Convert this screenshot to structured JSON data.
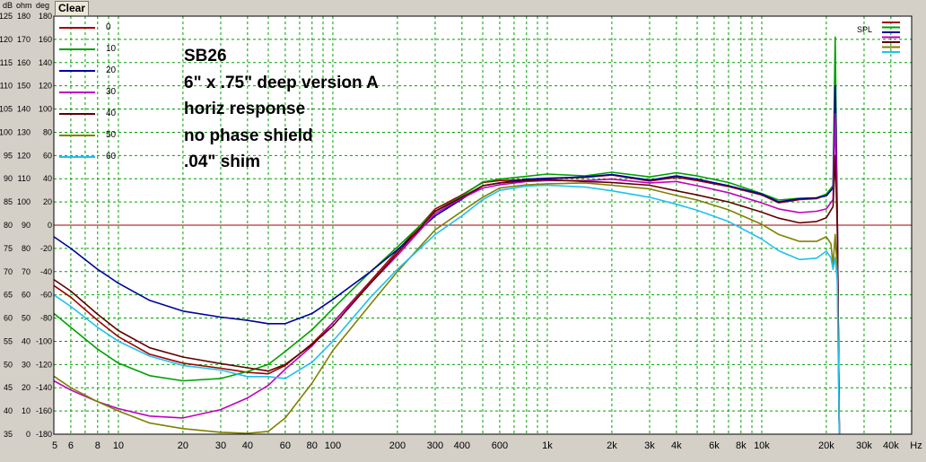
{
  "toolbar": {
    "clear_label": "Clear"
  },
  "axis_units": {
    "db": "dB",
    "ohm": "ohm",
    "deg": "deg"
  },
  "annotation": {
    "lines": [
      "SB26",
      "6\" x .75\" deep version A",
      "horiz response",
      "no phase shield",
      ".04\" shim"
    ]
  },
  "legend_right": {
    "label": "SPL"
  },
  "colors": {
    "background": "#ffffff",
    "grid": "#00a000",
    "reference_line": "#a00000",
    "series": [
      "#a00000",
      "#00a000",
      "#0000a0",
      "#c000c0",
      "#600000",
      "#808000",
      "#20c0f0"
    ]
  },
  "chart_data": {
    "type": "line",
    "xscale": "log",
    "xlim": [
      5,
      50000
    ],
    "ylim": [
      35,
      125
    ],
    "reference_line_db": 80,
    "x_tick_labels": [
      {
        "x": 5,
        "label": "5"
      },
      {
        "x": 6,
        "label": "6"
      },
      {
        "x": 8,
        "label": "8"
      },
      {
        "x": 10,
        "label": "10"
      },
      {
        "x": 20,
        "label": "20"
      },
      {
        "x": 30,
        "label": "30"
      },
      {
        "x": 40,
        "label": "40"
      },
      {
        "x": 60,
        "label": "60"
      },
      {
        "x": 80,
        "label": "80"
      },
      {
        "x": 100,
        "label": "100"
      },
      {
        "x": 200,
        "label": "200"
      },
      {
        "x": 300,
        "label": "300"
      },
      {
        "x": 400,
        "label": "400"
      },
      {
        "x": 600,
        "label": "600"
      },
      {
        "x": 1000,
        "label": "1k"
      },
      {
        "x": 2000,
        "label": "2k"
      },
      {
        "x": 3000,
        "label": "3k"
      },
      {
        "x": 4000,
        "label": "4k"
      },
      {
        "x": 6000,
        "label": "6k"
      },
      {
        "x": 8000,
        "label": "8k"
      },
      {
        "x": 10000,
        "label": "10k"
      },
      {
        "x": 20000,
        "label": "20k"
      },
      {
        "x": 30000,
        "label": "30k"
      },
      {
        "x": 40000,
        "label": "40k"
      },
      {
        "x": 50000,
        "label": "Hz"
      }
    ],
    "y_tick_labels": [
      {
        "db": "125",
        "ohm": "180",
        "deg": "180"
      },
      {
        "db": "120",
        "ohm": "170",
        "deg": "160"
      },
      {
        "db": "115",
        "ohm": "160",
        "deg": "140"
      },
      {
        "db": "110",
        "ohm": "150",
        "deg": "120"
      },
      {
        "db": "105",
        "ohm": "140",
        "deg": "100"
      },
      {
        "db": "100",
        "ohm": "130",
        "deg": "80"
      },
      {
        "db": "95",
        "ohm": "120",
        "deg": "60"
      },
      {
        "db": "90",
        "ohm": "110",
        "deg": "40"
      },
      {
        "db": "85",
        "ohm": "100",
        "deg": "20"
      },
      {
        "db": "80",
        "ohm": "90",
        "deg": "0"
      },
      {
        "db": "75",
        "ohm": "80",
        "deg": "-20"
      },
      {
        "db": "70",
        "ohm": "70",
        "deg": "-40"
      },
      {
        "db": "65",
        "ohm": "60",
        "deg": "-60"
      },
      {
        "db": "60",
        "ohm": "50",
        "deg": "-80"
      },
      {
        "db": "55",
        "ohm": "40",
        "deg": "-100"
      },
      {
        "db": "50",
        "ohm": "30",
        "deg": "-120"
      },
      {
        "db": "45",
        "ohm": "20",
        "deg": "-140"
      },
      {
        "db": "40",
        "ohm": "10",
        "deg": "-160"
      },
      {
        "db": "35",
        "ohm": "0",
        "deg": "-180"
      }
    ],
    "series": [
      {
        "name": "0",
        "color": "#a00000",
        "points": [
          [
            5,
            67
          ],
          [
            6,
            64.5
          ],
          [
            8,
            59.5
          ],
          [
            10,
            56
          ],
          [
            14,
            52.2
          ],
          [
            20,
            50.3
          ],
          [
            30,
            49.2
          ],
          [
            40,
            48.3
          ],
          [
            50,
            48
          ],
          [
            60,
            49.8
          ],
          [
            80,
            54.5
          ],
          [
            100,
            59
          ],
          [
            150,
            68
          ],
          [
            200,
            74.5
          ],
          [
            300,
            83.5
          ],
          [
            400,
            86.5
          ],
          [
            500,
            89.2
          ],
          [
            600,
            89.6
          ],
          [
            800,
            89.8
          ],
          [
            1000,
            90
          ],
          [
            1500,
            90.3
          ],
          [
            2000,
            90.8
          ],
          [
            3000,
            89.5
          ],
          [
            4000,
            90.3
          ],
          [
            5000,
            89.6
          ],
          [
            7000,
            88.3
          ],
          [
            10000,
            86.5
          ],
          [
            12000,
            84.8
          ],
          [
            15000,
            85.5
          ],
          [
            18000,
            85.7
          ],
          [
            20000,
            86.5
          ],
          [
            21500,
            88.3
          ],
          [
            22000,
            95
          ],
          [
            22500,
            83
          ],
          [
            23000,
            35
          ]
        ]
      },
      {
        "name": "10",
        "color": "#00a000",
        "points": [
          [
            5,
            61
          ],
          [
            6,
            58
          ],
          [
            8,
            53.3
          ],
          [
            10,
            50.3
          ],
          [
            14,
            47.6
          ],
          [
            20,
            46.5
          ],
          [
            30,
            47
          ],
          [
            40,
            48.5
          ],
          [
            50,
            50
          ],
          [
            60,
            52.8
          ],
          [
            80,
            57.5
          ],
          [
            100,
            62
          ],
          [
            150,
            70
          ],
          [
            200,
            75.3
          ],
          [
            300,
            83
          ],
          [
            400,
            86.3
          ],
          [
            500,
            89.3
          ],
          [
            600,
            89.9
          ],
          [
            800,
            90.5
          ],
          [
            1000,
            91
          ],
          [
            1500,
            90.6
          ],
          [
            2000,
            91.4
          ],
          [
            3000,
            90.4
          ],
          [
            4000,
            91.3
          ],
          [
            5000,
            90.6
          ],
          [
            7000,
            89.2
          ],
          [
            10000,
            86.8
          ],
          [
            12000,
            85.4
          ],
          [
            15000,
            85.8
          ],
          [
            18000,
            85.9
          ],
          [
            20000,
            86.7
          ],
          [
            21500,
            88.5
          ],
          [
            22000,
            120.5
          ],
          [
            22500,
            83
          ],
          [
            23000,
            35
          ]
        ]
      },
      {
        "name": "20",
        "color": "#0000a0",
        "points": [
          [
            5,
            77.5
          ],
          [
            6,
            75
          ],
          [
            8,
            70.5
          ],
          [
            10,
            67.5
          ],
          [
            14,
            63.8
          ],
          [
            20,
            61.5
          ],
          [
            30,
            60.2
          ],
          [
            40,
            59.5
          ],
          [
            50,
            58.8
          ],
          [
            60,
            58.8
          ],
          [
            80,
            61
          ],
          [
            100,
            64
          ],
          [
            150,
            70
          ],
          [
            200,
            74.7
          ],
          [
            300,
            82
          ],
          [
            400,
            85.6
          ],
          [
            500,
            88.5
          ],
          [
            600,
            89.1
          ],
          [
            800,
            89.9
          ],
          [
            1000,
            90.1
          ],
          [
            1500,
            90.4
          ],
          [
            2000,
            90.9
          ],
          [
            3000,
            89.7
          ],
          [
            4000,
            90.6
          ],
          [
            5000,
            89.9
          ],
          [
            7000,
            88.5
          ],
          [
            10000,
            86.7
          ],
          [
            12000,
            85
          ],
          [
            15000,
            85.7
          ],
          [
            18000,
            85.9
          ],
          [
            20000,
            86.3
          ],
          [
            21500,
            88
          ],
          [
            22000,
            110
          ],
          [
            22500,
            83
          ],
          [
            23000,
            35
          ]
        ]
      },
      {
        "name": "30",
        "color": "#c000c0",
        "points": [
          [
            5,
            46.5
          ],
          [
            6,
            44.5
          ],
          [
            8,
            42
          ],
          [
            10,
            40.5
          ],
          [
            14,
            38.9
          ],
          [
            20,
            38.5
          ],
          [
            30,
            40.3
          ],
          [
            40,
            42.8
          ],
          [
            50,
            45.5
          ],
          [
            60,
            49
          ],
          [
            80,
            54
          ],
          [
            100,
            59
          ],
          [
            150,
            67.5
          ],
          [
            200,
            73.5
          ],
          [
            300,
            82.5
          ],
          [
            400,
            85.8
          ],
          [
            500,
            88
          ],
          [
            600,
            88.7
          ],
          [
            800,
            89.4
          ],
          [
            1000,
            89.6
          ],
          [
            1500,
            89.6
          ],
          [
            2000,
            89.9
          ],
          [
            3000,
            89.1
          ],
          [
            4000,
            89.4
          ],
          [
            5000,
            88.5
          ],
          [
            7000,
            87
          ],
          [
            10000,
            84.8
          ],
          [
            12000,
            83.5
          ],
          [
            15000,
            82.7
          ],
          [
            18000,
            83
          ],
          [
            20000,
            83.5
          ],
          [
            21500,
            85.5
          ],
          [
            22000,
            104
          ],
          [
            22500,
            82
          ],
          [
            23000,
            35
          ]
        ]
      },
      {
        "name": "40",
        "color": "#600000",
        "points": [
          [
            5,
            68.3
          ],
          [
            6,
            65.8
          ],
          [
            8,
            60.8
          ],
          [
            10,
            57.3
          ],
          [
            14,
            53.6
          ],
          [
            20,
            51.6
          ],
          [
            30,
            50.2
          ],
          [
            40,
            49.3
          ],
          [
            50,
            48.6
          ],
          [
            60,
            50
          ],
          [
            80,
            54.3
          ],
          [
            100,
            58.3
          ],
          [
            150,
            67.5
          ],
          [
            200,
            74
          ],
          [
            300,
            83
          ],
          [
            400,
            86
          ],
          [
            500,
            88.5
          ],
          [
            600,
            89.1
          ],
          [
            800,
            89.6
          ],
          [
            1000,
            89.8
          ],
          [
            1500,
            89.4
          ],
          [
            2000,
            89.2
          ],
          [
            3000,
            88.6
          ],
          [
            4000,
            87.4
          ],
          [
            5000,
            86.5
          ],
          [
            7000,
            85
          ],
          [
            10000,
            82.8
          ],
          [
            12000,
            81.5
          ],
          [
            15000,
            80.5
          ],
          [
            18000,
            80.8
          ],
          [
            20000,
            81.6
          ],
          [
            21500,
            84
          ],
          [
            22000,
            95
          ],
          [
            22500,
            80
          ],
          [
            23000,
            35
          ]
        ]
      },
      {
        "name": "50",
        "color": "#808000",
        "points": [
          [
            5,
            47.5
          ],
          [
            6,
            45
          ],
          [
            8,
            42
          ],
          [
            10,
            40
          ],
          [
            14,
            37.4
          ],
          [
            20,
            36.2
          ],
          [
            30,
            35.4
          ],
          [
            40,
            35.2
          ],
          [
            50,
            35.6
          ],
          [
            60,
            38.5
          ],
          [
            80,
            46
          ],
          [
            100,
            53
          ],
          [
            150,
            63
          ],
          [
            200,
            70
          ],
          [
            300,
            79
          ],
          [
            400,
            83
          ],
          [
            500,
            86
          ],
          [
            600,
            88
          ],
          [
            800,
            88.7
          ],
          [
            1000,
            88.9
          ],
          [
            1500,
            89.1
          ],
          [
            2000,
            88.6
          ],
          [
            3000,
            87.8
          ],
          [
            4000,
            86.4
          ],
          [
            5000,
            85.4
          ],
          [
            7000,
            83.3
          ],
          [
            10000,
            80.2
          ],
          [
            12000,
            78
          ],
          [
            15000,
            76.5
          ],
          [
            18000,
            76.5
          ],
          [
            20000,
            77.5
          ],
          [
            21000,
            76
          ],
          [
            21500,
            71.5
          ],
          [
            22000,
            78
          ],
          [
            22500,
            70
          ],
          [
            23000,
            35
          ]
        ]
      },
      {
        "name": "60",
        "color": "#20c0f0",
        "points": [
          [
            5,
            65
          ],
          [
            6,
            62.5
          ],
          [
            8,
            58
          ],
          [
            10,
            55
          ],
          [
            14,
            51.8
          ],
          [
            20,
            49.8
          ],
          [
            30,
            48.8
          ],
          [
            40,
            47.4
          ],
          [
            50,
            47.4
          ],
          [
            60,
            47
          ],
          [
            80,
            50.5
          ],
          [
            100,
            55
          ],
          [
            150,
            64.5
          ],
          [
            200,
            70.5
          ],
          [
            300,
            78
          ],
          [
            400,
            82
          ],
          [
            500,
            85.5
          ],
          [
            600,
            87.5
          ],
          [
            800,
            88.4
          ],
          [
            1000,
            88.6
          ],
          [
            1500,
            88.2
          ],
          [
            2000,
            87.4
          ],
          [
            3000,
            86
          ],
          [
            4000,
            84.5
          ],
          [
            5000,
            83.2
          ],
          [
            7000,
            80.8
          ],
          [
            10000,
            77
          ],
          [
            12000,
            74.5
          ],
          [
            15000,
            72.6
          ],
          [
            18000,
            72.9
          ],
          [
            20000,
            74.4
          ],
          [
            21000,
            73
          ],
          [
            21500,
            70.5
          ],
          [
            22000,
            73
          ],
          [
            22500,
            68
          ],
          [
            23000,
            35
          ]
        ]
      }
    ]
  }
}
